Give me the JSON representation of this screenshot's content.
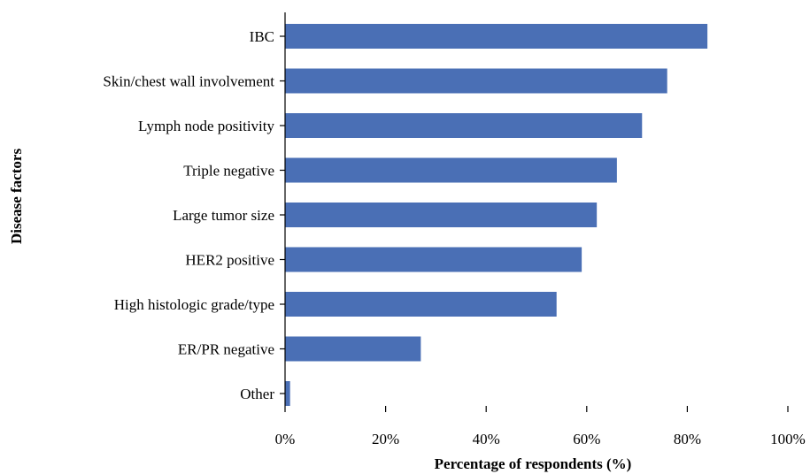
{
  "chart_data": {
    "type": "bar",
    "orientation": "horizontal",
    "categories": [
      "IBC",
      "Skin/chest wall involvement",
      "Lymph node positivity",
      "Triple negative",
      "Large tumor size",
      "HER2 positive",
      "High histologic grade/type",
      "ER/PR negative",
      "Other"
    ],
    "values": [
      84,
      76,
      71,
      66,
      62,
      59,
      54,
      27,
      1
    ],
    "xlabel": "Percentage of respondents (%)",
    "ylabel": "Disease factors",
    "xlim": [
      0,
      100
    ],
    "x_ticks": [
      "0%",
      "20%",
      "40%",
      "60%",
      "80%",
      "100%"
    ],
    "bar_color": "#4a6fb5",
    "grid": false,
    "legend": "none"
  }
}
